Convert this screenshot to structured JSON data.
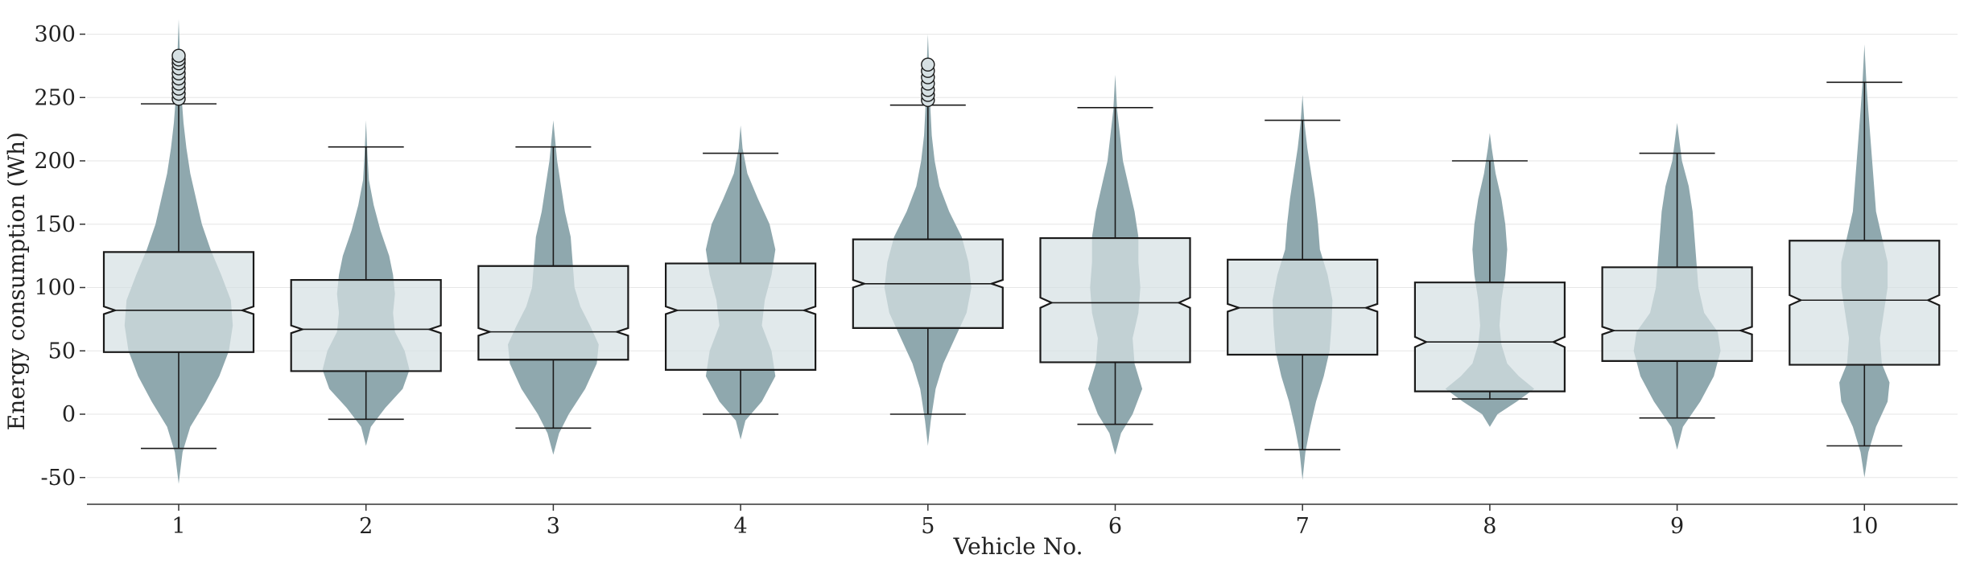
{
  "chart_data": {
    "type": "violin-box",
    "xlabel": "Vehicle No.",
    "ylabel": "Energy consumption (Wh)",
    "ylim": [
      -70,
      310
    ],
    "yticks": [
      -50,
      0,
      50,
      100,
      150,
      200,
      250,
      300
    ],
    "grid": "horizontal",
    "colors": {
      "violin": "#8fa8ae",
      "box_fill": "#d6e0e3",
      "line": "#1a1a1a",
      "grid": "#e6e6e6"
    },
    "categories": [
      "1",
      "2",
      "3",
      "4",
      "5",
      "6",
      "7",
      "8",
      "9",
      "10"
    ],
    "series": [
      {
        "category": "1",
        "whisker_low": -27,
        "q1": 49,
        "median": 82,
        "q3": 128,
        "whisker_high": 245,
        "notch_low": 79,
        "notch_high": 85,
        "outliers": [
          249,
          253,
          257,
          261,
          265,
          269,
          273,
          277,
          280,
          283
        ],
        "violin": {
          "min": -55,
          "max": 312,
          "width": [
            [
              -55,
              0.0
            ],
            [
              -30,
              0.04
            ],
            [
              -10,
              0.12
            ],
            [
              10,
              0.28
            ],
            [
              30,
              0.42
            ],
            [
              50,
              0.52
            ],
            [
              70,
              0.56
            ],
            [
              90,
              0.54
            ],
            [
              110,
              0.44
            ],
            [
              130,
              0.33
            ],
            [
              150,
              0.24
            ],
            [
              170,
              0.18
            ],
            [
              190,
              0.12
            ],
            [
              210,
              0.08
            ],
            [
              230,
              0.05
            ],
            [
              250,
              0.03
            ],
            [
              270,
              0.02
            ],
            [
              290,
              0.01
            ],
            [
              312,
              0.0
            ]
          ]
        }
      },
      {
        "category": "2",
        "whisker_low": -4,
        "q1": 34,
        "median": 67,
        "q3": 106,
        "whisker_high": 211,
        "notch_low": 64,
        "notch_high": 70,
        "outliers": [],
        "violin": {
          "min": -25,
          "max": 232,
          "width": [
            [
              -25,
              0.0
            ],
            [
              -10,
              0.05
            ],
            [
              5,
              0.2
            ],
            [
              20,
              0.38
            ],
            [
              35,
              0.45
            ],
            [
              50,
              0.4
            ],
            [
              65,
              0.3
            ],
            [
              80,
              0.28
            ],
            [
              95,
              0.3
            ],
            [
              110,
              0.28
            ],
            [
              125,
              0.24
            ],
            [
              145,
              0.15
            ],
            [
              165,
              0.08
            ],
            [
              185,
              0.03
            ],
            [
              205,
              0.015
            ],
            [
              232,
              0.0
            ]
          ]
        }
      },
      {
        "category": "3",
        "whisker_low": -11,
        "q1": 43,
        "median": 65,
        "q3": 117,
        "whisker_high": 211,
        "notch_low": 62,
        "notch_high": 68,
        "outliers": [],
        "violin": {
          "min": -32,
          "max": 232,
          "width": [
            [
              -32,
              0.0
            ],
            [
              -15,
              0.06
            ],
            [
              0,
              0.16
            ],
            [
              20,
              0.33
            ],
            [
              40,
              0.45
            ],
            [
              55,
              0.47
            ],
            [
              70,
              0.38
            ],
            [
              85,
              0.28
            ],
            [
              100,
              0.22
            ],
            [
              120,
              0.2
            ],
            [
              140,
              0.18
            ],
            [
              160,
              0.12
            ],
            [
              180,
              0.08
            ],
            [
              200,
              0.04
            ],
            [
              232,
              0.0
            ]
          ]
        }
      },
      {
        "category": "4",
        "whisker_low": 0,
        "q1": 35,
        "median": 82,
        "q3": 119,
        "whisker_high": 206,
        "notch_low": 79,
        "notch_high": 85,
        "outliers": [],
        "violin": {
          "min": -20,
          "max": 228,
          "width": [
            [
              -20,
              0.0
            ],
            [
              -5,
              0.05
            ],
            [
              10,
              0.22
            ],
            [
              30,
              0.36
            ],
            [
              50,
              0.32
            ],
            [
              70,
              0.22
            ],
            [
              90,
              0.25
            ],
            [
              110,
              0.32
            ],
            [
              130,
              0.36
            ],
            [
              150,
              0.3
            ],
            [
              170,
              0.18
            ],
            [
              190,
              0.07
            ],
            [
              210,
              0.02
            ],
            [
              228,
              0.0
            ]
          ]
        }
      },
      {
        "category": "5",
        "whisker_low": 0,
        "q1": 68,
        "median": 103,
        "q3": 138,
        "whisker_high": 244,
        "notch_low": 100,
        "notch_high": 106,
        "outliers": [
          248,
          252,
          256,
          261,
          266,
          271,
          276
        ],
        "violin": {
          "min": -25,
          "max": 300,
          "width": [
            [
              -25,
              0.0
            ],
            [
              -5,
              0.03
            ],
            [
              20,
              0.08
            ],
            [
              40,
              0.16
            ],
            [
              60,
              0.28
            ],
            [
              80,
              0.4
            ],
            [
              100,
              0.45
            ],
            [
              120,
              0.42
            ],
            [
              140,
              0.35
            ],
            [
              160,
              0.22
            ],
            [
              180,
              0.12
            ],
            [
              200,
              0.07
            ],
            [
              220,
              0.04
            ],
            [
              250,
              0.02
            ],
            [
              280,
              0.01
            ],
            [
              300,
              0.0
            ]
          ]
        }
      },
      {
        "category": "6",
        "whisker_low": -8,
        "q1": 41,
        "median": 88,
        "q3": 139,
        "whisker_high": 242,
        "notch_low": 84,
        "notch_high": 92,
        "outliers": [],
        "violin": {
          "min": -32,
          "max": 268,
          "width": [
            [
              -32,
              0.0
            ],
            [
              -15,
              0.06
            ],
            [
              0,
              0.18
            ],
            [
              20,
              0.28
            ],
            [
              40,
              0.2
            ],
            [
              60,
              0.18
            ],
            [
              80,
              0.24
            ],
            [
              100,
              0.26
            ],
            [
              120,
              0.24
            ],
            [
              140,
              0.24
            ],
            [
              160,
              0.2
            ],
            [
              180,
              0.14
            ],
            [
              200,
              0.08
            ],
            [
              220,
              0.05
            ],
            [
              240,
              0.02
            ],
            [
              268,
              0.0
            ]
          ]
        }
      },
      {
        "category": "7",
        "whisker_low": -28,
        "q1": 47,
        "median": 84,
        "q3": 122,
        "whisker_high": 232,
        "notch_low": 81,
        "notch_high": 87,
        "outliers": [],
        "violin": {
          "min": -52,
          "max": 252,
          "width": [
            [
              -52,
              0.0
            ],
            [
              -30,
              0.03
            ],
            [
              -10,
              0.08
            ],
            [
              10,
              0.14
            ],
            [
              30,
              0.22
            ],
            [
              50,
              0.28
            ],
            [
              70,
              0.3
            ],
            [
              90,
              0.31
            ],
            [
              110,
              0.26
            ],
            [
              130,
              0.18
            ],
            [
              150,
              0.16
            ],
            [
              170,
              0.13
            ],
            [
              190,
              0.09
            ],
            [
              210,
              0.05
            ],
            [
              230,
              0.02
            ],
            [
              252,
              0.0
            ]
          ]
        }
      },
      {
        "category": "8",
        "whisker_low": 12,
        "q1": 18,
        "median": 57,
        "q3": 104,
        "whisker_high": 200,
        "notch_low": 53,
        "notch_high": 61,
        "outliers": [],
        "violin": {
          "min": -10,
          "max": 222,
          "width": [
            [
              -10,
              0.0
            ],
            [
              0,
              0.08
            ],
            [
              10,
              0.28
            ],
            [
              20,
              0.46
            ],
            [
              30,
              0.3
            ],
            [
              40,
              0.18
            ],
            [
              55,
              0.12
            ],
            [
              70,
              0.1
            ],
            [
              90,
              0.12
            ],
            [
              110,
              0.16
            ],
            [
              130,
              0.18
            ],
            [
              150,
              0.16
            ],
            [
              170,
              0.12
            ],
            [
              190,
              0.06
            ],
            [
              210,
              0.02
            ],
            [
              222,
              0.0
            ]
          ]
        }
      },
      {
        "category": "9",
        "whisker_low": -3,
        "q1": 42,
        "median": 66,
        "q3": 116,
        "whisker_high": 206,
        "notch_low": 63,
        "notch_high": 69,
        "outliers": [],
        "violin": {
          "min": -28,
          "max": 230,
          "width": [
            [
              -28,
              0.0
            ],
            [
              -10,
              0.06
            ],
            [
              10,
              0.24
            ],
            [
              30,
              0.38
            ],
            [
              50,
              0.45
            ],
            [
              65,
              0.42
            ],
            [
              80,
              0.28
            ],
            [
              100,
              0.22
            ],
            [
              120,
              0.2
            ],
            [
              140,
              0.18
            ],
            [
              160,
              0.16
            ],
            [
              180,
              0.12
            ],
            [
              200,
              0.05
            ],
            [
              230,
              0.0
            ]
          ]
        }
      },
      {
        "category": "10",
        "whisker_low": -25,
        "q1": 39,
        "median": 90,
        "q3": 137,
        "whisker_high": 262,
        "notch_low": 86,
        "notch_high": 94,
        "outliers": [],
        "violin": {
          "min": -50,
          "max": 292,
          "width": [
            [
              -50,
              0.0
            ],
            [
              -30,
              0.04
            ],
            [
              -10,
              0.12
            ],
            [
              10,
              0.24
            ],
            [
              25,
              0.26
            ],
            [
              40,
              0.18
            ],
            [
              60,
              0.16
            ],
            [
              80,
              0.2
            ],
            [
              100,
              0.24
            ],
            [
              120,
              0.24
            ],
            [
              140,
              0.18
            ],
            [
              160,
              0.12
            ],
            [
              180,
              0.1
            ],
            [
              200,
              0.08
            ],
            [
              220,
              0.06
            ],
            [
              240,
              0.04
            ],
            [
              262,
              0.02
            ],
            [
              292,
              0.0
            ]
          ]
        }
      }
    ]
  }
}
